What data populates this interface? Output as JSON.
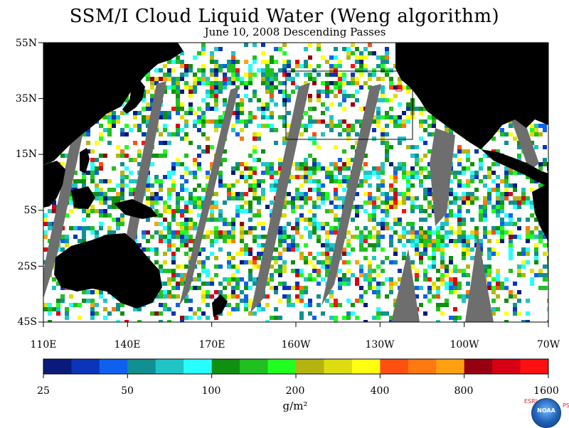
{
  "header": {
    "title": "SSM/I Cloud Liquid Water (Weng algorithm)",
    "subtitle": "June 10, 2008  Descending Passes"
  },
  "map": {
    "lat_labels": [
      "55N",
      "35N",
      "15N",
      "5S",
      "25S",
      "45S"
    ],
    "lon_labels": [
      "110E",
      "140E",
      "170E",
      "160W",
      "130W",
      "100W",
      "70W"
    ],
    "colors": {
      "land": "#000000",
      "missing_swath_gap": "#6e6e6e",
      "clear": "#ffffff"
    }
  },
  "colorbar": {
    "colors": [
      "#0a1a7a",
      "#0b34b8",
      "#1060f0",
      "#109090",
      "#20c4c4",
      "#28ffff",
      "#109010",
      "#20c020",
      "#20ff20",
      "#b4b410",
      "#dcdc10",
      "#ffff10",
      "#ff5010",
      "#ff7810",
      "#ffa010",
      "#960010",
      "#d80014",
      "#ff1010"
    ],
    "tick_labels": [
      "25",
      "50",
      "100",
      "200",
      "400",
      "800",
      "1600"
    ],
    "units": "g/m²"
  },
  "branding": {
    "left_letters": "ESRL",
    "right_letters": "PSD",
    "logo_text": "NOAA"
  }
}
